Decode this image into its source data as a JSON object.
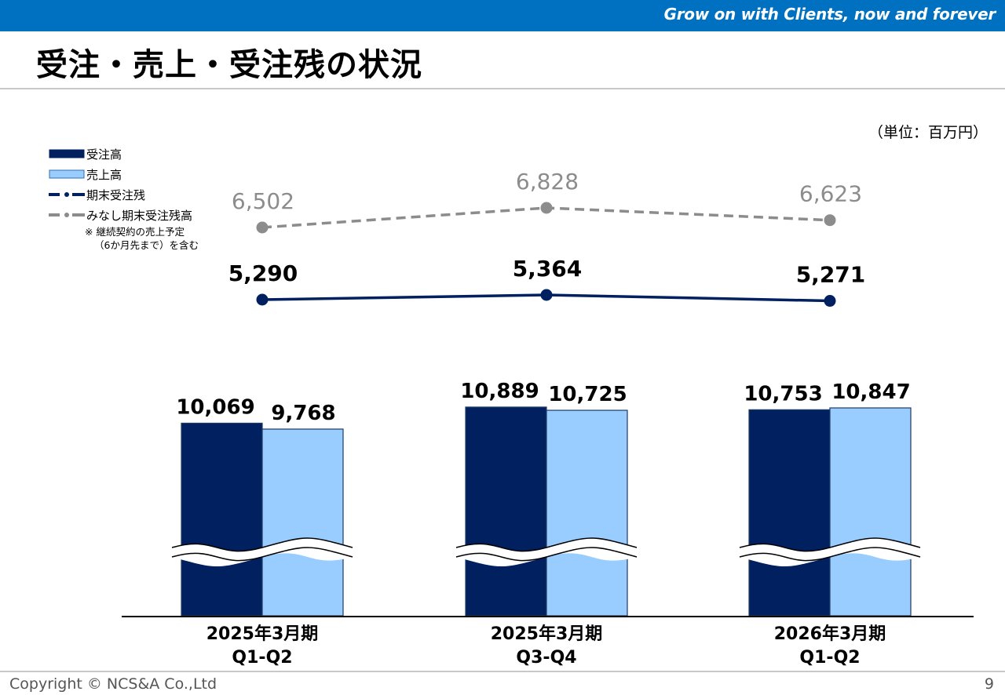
{
  "header": {
    "tagline": "Grow on with Clients, now and forever",
    "title": "受注・売上・受注残の状況",
    "unit": "（単位：百万円）"
  },
  "legend": {
    "items": [
      "受注高",
      "売上高",
      "期末受注残",
      "みなし期末受注残高"
    ],
    "note_line1": "※ 継続契約の売上予定",
    "note_line2": "（6か月先まで）を含む"
  },
  "footer": {
    "copyright": "Copyright © NCS&A Co.,Ltd",
    "page": "9"
  },
  "colors": {
    "orders": "#002060",
    "sales": "#99ccff",
    "backlog": "#002060",
    "deemed_backlog": "#8c8c8c",
    "topbar": "#0070c0"
  },
  "chart_data": {
    "type": "bar",
    "categories": [
      [
        "2025年3月期",
        "Q1-Q2"
      ],
      [
        "2025年3月期",
        "Q3-Q4"
      ],
      [
        "2026年3月期",
        "Q1-Q2"
      ]
    ],
    "series": [
      {
        "name": "受注高",
        "type": "bar",
        "values": [
          10069,
          10889,
          10753
        ],
        "labels": [
          "10,069",
          "10,889",
          "10,753"
        ]
      },
      {
        "name": "売上高",
        "type": "bar",
        "values": [
          9768,
          10725,
          10847
        ],
        "labels": [
          "9,768",
          "10,725",
          "10,847"
        ]
      },
      {
        "name": "期末受注残",
        "type": "line",
        "values": [
          5290,
          5364,
          5271
        ],
        "labels": [
          "5,290",
          "5,364",
          "5,271"
        ]
      },
      {
        "name": "みなし期末受注残高",
        "type": "line",
        "style": "dashed",
        "values": [
          6502,
          6828,
          6623
        ],
        "labels": [
          "6,502",
          "6,828",
          "6,623"
        ]
      }
    ],
    "axis_break": true,
    "gridlines": false
  }
}
